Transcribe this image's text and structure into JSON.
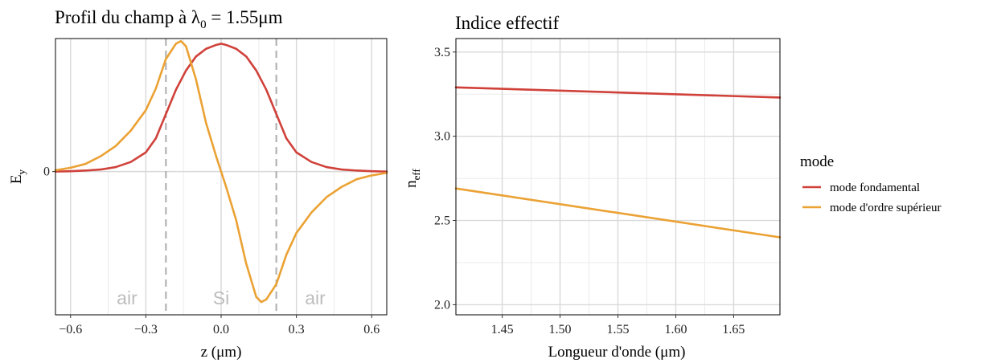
{
  "chart_data": [
    {
      "type": "line",
      "title_main": "Profil du champ à λ",
      "title_sub": "0",
      "title_tail": " = 1.55μm",
      "xlabel": "z (μm)",
      "ylabel_main": "E",
      "ylabel_sub": "y",
      "xlim": [
        -0.66,
        0.66
      ],
      "ylim": [
        -1.12,
        1.04
      ],
      "grid": true,
      "xticks": [
        -0.6,
        -0.3,
        0.0,
        0.3,
        0.6
      ],
      "xtick_labels": [
        "−0.6",
        "−0.3",
        "0.0",
        "0.3",
        "0.6"
      ],
      "yticks": [
        0
      ],
      "ytick_labels": [
        "0"
      ],
      "vlines": [
        -0.22,
        0.22
      ],
      "regions": [
        {
          "label": "air",
          "x": -0.375
        },
        {
          "label": "Si",
          "x": 0.0
        },
        {
          "label": "air",
          "x": 0.375
        }
      ],
      "series": [
        {
          "name": "mode fondamental",
          "color": "#d0413a",
          "x": [
            -0.66,
            -0.6,
            -0.54,
            -0.48,
            -0.42,
            -0.36,
            -0.3,
            -0.26,
            -0.22,
            -0.18,
            -0.14,
            -0.1,
            -0.06,
            -0.02,
            0.0,
            0.02,
            0.06,
            0.1,
            0.14,
            0.18,
            0.22,
            0.26,
            0.3,
            0.36,
            0.42,
            0.48,
            0.54,
            0.6,
            0.66
          ],
          "y": [
            0.0,
            0.003,
            0.008,
            0.016,
            0.035,
            0.075,
            0.15,
            0.26,
            0.45,
            0.64,
            0.79,
            0.9,
            0.96,
            0.99,
            1.0,
            0.99,
            0.96,
            0.9,
            0.79,
            0.64,
            0.45,
            0.26,
            0.15,
            0.075,
            0.035,
            0.016,
            0.008,
            0.003,
            0.0
          ]
        },
        {
          "name": "mode d'ordre supérieur",
          "color": "#eba234",
          "x": [
            -0.66,
            -0.6,
            -0.54,
            -0.48,
            -0.42,
            -0.36,
            -0.3,
            -0.26,
            -0.22,
            -0.18,
            -0.16,
            -0.14,
            -0.1,
            -0.06,
            -0.02,
            0.0,
            0.02,
            0.06,
            0.1,
            0.14,
            0.16,
            0.18,
            0.22,
            0.26,
            0.3,
            0.36,
            0.42,
            0.48,
            0.54,
            0.6,
            0.66
          ],
          "y": [
            0.01,
            0.03,
            0.06,
            0.12,
            0.2,
            0.32,
            0.48,
            0.65,
            0.88,
            1.0,
            1.02,
            0.98,
            0.72,
            0.38,
            0.12,
            0.0,
            -0.12,
            -0.38,
            -0.72,
            -0.98,
            -1.02,
            -1.0,
            -0.88,
            -0.65,
            -0.48,
            -0.32,
            -0.2,
            -0.12,
            -0.06,
            -0.03,
            -0.01
          ]
        }
      ]
    },
    {
      "type": "line",
      "title": "Indice effectif",
      "xlabel": "Longueur d'onde (μm)",
      "ylabel_main": "n",
      "ylabel_sub": "eff",
      "xlim": [
        1.41,
        1.69
      ],
      "ylim": [
        1.94,
        3.58
      ],
      "grid": true,
      "xticks": [
        1.45,
        1.5,
        1.55,
        1.6,
        1.65
      ],
      "xtick_labels": [
        "1.45",
        "1.50",
        "1.55",
        "1.60",
        "1.65"
      ],
      "yticks": [
        2.0,
        2.5,
        3.0,
        3.5
      ],
      "ytick_labels": [
        "2.0",
        "2.5",
        "3.0",
        "3.5"
      ],
      "series": [
        {
          "name": "mode fondamental",
          "color": "#d0413a",
          "x": [
            1.41,
            1.69
          ],
          "y": [
            3.29,
            3.23
          ]
        },
        {
          "name": "mode d'ordre supérieur",
          "color": "#eba234",
          "x": [
            1.41,
            1.69
          ],
          "y": [
            2.69,
            2.4
          ]
        }
      ]
    }
  ],
  "legend": {
    "title": "mode",
    "items": [
      {
        "label": "mode fondamental",
        "color": "#d0413a"
      },
      {
        "label": "mode d'ordre supérieur",
        "color": "#eba234"
      }
    ]
  }
}
